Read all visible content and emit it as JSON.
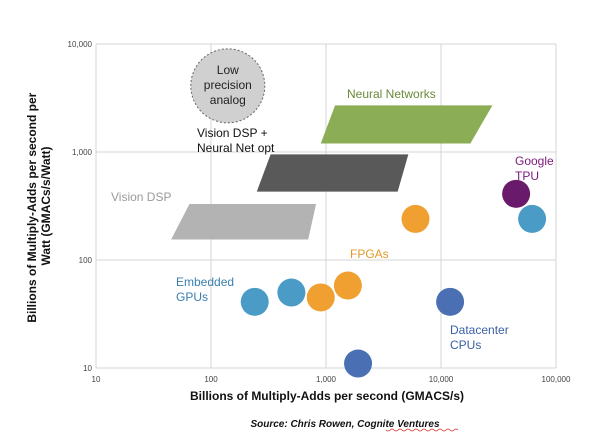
{
  "chart_data": {
    "type": "scatter",
    "title": "",
    "xlabel": "Billions of Multiply-Adds per second (GMACS/s)",
    "ylabel_lines": [
      "Billions of Multiply-Adds per second  per",
      "Watt (GMACs/s/Watt)"
    ],
    "xscale": "log",
    "yscale": "log",
    "xlim": [
      10,
      100000
    ],
    "ylim": [
      10,
      10000
    ],
    "x_ticks": [
      "10",
      "100",
      "1,000",
      "10,000",
      "100,000"
    ],
    "y_ticks": [
      "10",
      "100",
      "1,000",
      "10,000"
    ],
    "grid": true,
    "regions": [
      {
        "name": "Neural Networks",
        "color": "#8aad55",
        "text_color": "#6a8a3a",
        "x": [
          900,
          18000,
          28000,
          1200
        ],
        "y": [
          1200,
          1200,
          2700,
          2700
        ]
      },
      {
        "name_lines": [
          "Vision DSP +",
          "Neural Net opt"
        ],
        "color": "#595959",
        "text_color": "#111111",
        "x": [
          250,
          4200,
          5200,
          330
        ],
        "y": [
          430,
          430,
          950,
          950
        ]
      },
      {
        "name": "Vision DSP",
        "color": "#b3b3b3",
        "text_color": "#9a9a9a",
        "x": [
          45,
          700,
          820,
          65
        ],
        "y": [
          155,
          155,
          330,
          330
        ]
      }
    ],
    "low_precision_bubble": {
      "label_lines": [
        "Low",
        "precision",
        "analog"
      ],
      "x": 140,
      "y": 4100,
      "color": "#d0d0d0",
      "stroke": "#666666"
    },
    "points": [
      {
        "x": 240,
        "y": 41,
        "color": "#4a9cc7"
      },
      {
        "x": 500,
        "y": 50,
        "color": "#4a9cc7"
      },
      {
        "x": 900,
        "y": 45,
        "color": "#f0a030"
      },
      {
        "x": 1550,
        "y": 58,
        "color": "#f0a030"
      },
      {
        "x": 6000,
        "y": 240,
        "color": "#f0a030"
      },
      {
        "x": 12000,
        "y": 41,
        "color": "#4a6fb3"
      },
      {
        "x": 1900,
        "y": 11,
        "color": "#4a6fb3"
      },
      {
        "x": 45000,
        "y": 410,
        "color": "#6a1a6a"
      },
      {
        "x": 62000,
        "y": 240,
        "color": "#4a9cc7"
      }
    ],
    "annotations": [
      {
        "lines": [
          "Embedded",
          "GPUs"
        ],
        "color": "#3a7fae"
      },
      {
        "lines": [
          "FPGAs"
        ],
        "color": "#e09a2a"
      },
      {
        "lines": [
          "Google",
          "TPU"
        ],
        "color": "#7a1a7a"
      },
      {
        "lines": [
          "Datacenter",
          "CPUs"
        ],
        "color": "#3a5fa3"
      }
    ]
  },
  "source": {
    "prefix": "Source:  Chris Rowen, ",
    "company": "Cognite Ventures"
  }
}
